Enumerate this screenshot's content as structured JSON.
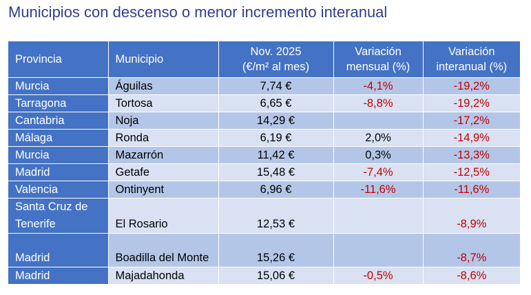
{
  "title": "Municipios con descenso o menor incremento interanual",
  "headers": {
    "provincia": "Provincia",
    "municipio": "Municipio",
    "precio_line1": "Nov. 2025",
    "precio_line2": "(€/m² al mes)",
    "mensual_line1": "Variación",
    "mensual_line2": "mensual (%)",
    "interanual_line1": "Variación",
    "interanual_line2": "interanual (%)"
  },
  "rows": [
    {
      "provincia": "Murcia",
      "municipio": "Águilas",
      "precio": "7,74 €",
      "mensual": "-4,1%",
      "interanual": "-19,2%"
    },
    {
      "provincia": "Tarragona",
      "municipio": "Tortosa",
      "precio": "6,65 €",
      "mensual": "-8,8%",
      "interanual": "-19,2%"
    },
    {
      "provincia": "Cantabria",
      "municipio": "Noja",
      "precio": "14,29 €",
      "mensual": "",
      "interanual": "-17,2%"
    },
    {
      "provincia": "Málaga",
      "municipio": "Ronda",
      "precio": "6,19 €",
      "mensual": "2,0%",
      "interanual": "-14,9%"
    },
    {
      "provincia": "Murcia",
      "municipio": "Mazarrón",
      "precio": "11,42 €",
      "mensual": "0,3%",
      "interanual": "-13,3%"
    },
    {
      "provincia": "Madrid",
      "municipio": "Getafe",
      "precio": "15,48 €",
      "mensual": "-7,4%",
      "interanual": "-12,5%"
    },
    {
      "provincia": "Valencia",
      "municipio": "Ontinyent",
      "precio": "6,96 €",
      "mensual": "-11,6%",
      "interanual": "-11,6%"
    },
    {
      "provincia": "Santa Cruz de Tenerife",
      "municipio": "El Rosario",
      "precio": "12,53 €",
      "mensual": "",
      "interanual": "-8,9%"
    },
    {
      "provincia": "Madrid",
      "municipio": "Boadilla del Monte",
      "precio": "15,26 €",
      "mensual": "",
      "interanual": "-8,7%"
    },
    {
      "provincia": "Madrid",
      "municipio": "Majadahonda",
      "precio": "15,06 €",
      "mensual": "-0,5%",
      "interanual": "-8,6%"
    }
  ],
  "colors": {
    "title": "#2e3e8c",
    "header_bg": "#4472c4",
    "row_odd": "#b4c6e7",
    "row_even": "#d9e1f2",
    "negative": "#c00000"
  }
}
